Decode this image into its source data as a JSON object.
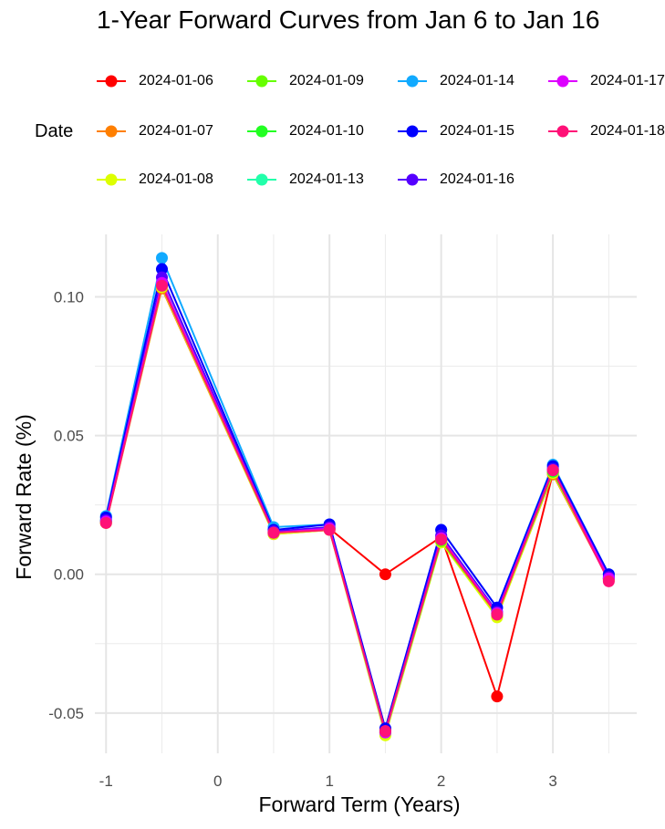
{
  "chart_data": {
    "type": "line",
    "title": "1-Year Forward Curves from Jan 6 to Jan 16",
    "xlabel": "Forward Term (Years)",
    "ylabel": "Forward Rate (%)",
    "legend_title": "Date",
    "legend_position": "top",
    "grid": true,
    "xlim": [
      -1.1,
      3.75
    ],
    "ylim": [
      -0.0645,
      0.1225
    ],
    "x_ticks": [
      -1,
      0,
      1,
      2,
      3
    ],
    "y_ticks": [
      -0.05,
      0.0,
      0.05,
      0.1
    ],
    "x_tick_labels": [
      "-1",
      "0",
      "1",
      "2",
      "3"
    ],
    "y_tick_labels": [
      "-0.05",
      "0.00",
      "0.05",
      "0.10"
    ],
    "x": [
      -1,
      -0.5,
      0.5,
      1,
      1.5,
      2,
      2.5,
      3,
      3.5
    ],
    "series": [
      {
        "name": "2024-01-06",
        "color": "#FF0000",
        "values": [
          0.019,
          0.104,
          0.015,
          0.0165,
          0.0,
          0.0135,
          -0.044,
          0.0365,
          -0.0015
        ]
      },
      {
        "name": "2024-01-07",
        "color": "#FF7F00",
        "values": [
          0.0185,
          0.103,
          0.0145,
          0.016,
          -0.057,
          0.012,
          -0.015,
          0.036,
          -0.002
        ]
      },
      {
        "name": "2024-01-08",
        "color": "#DDFF00",
        "values": [
          0.0185,
          0.1035,
          0.0145,
          0.016,
          -0.058,
          0.0115,
          -0.0155,
          0.0365,
          -0.002
        ]
      },
      {
        "name": "2024-01-09",
        "color": "#66FF00",
        "values": [
          0.019,
          0.104,
          0.015,
          0.0165,
          -0.057,
          0.012,
          -0.0145,
          0.037,
          -0.0015
        ]
      },
      {
        "name": "2024-01-10",
        "color": "#22FF22",
        "values": [
          0.019,
          0.1045,
          0.015,
          0.0165,
          -0.057,
          0.0125,
          -0.014,
          0.037,
          -0.0015
        ]
      },
      {
        "name": "2024-01-13",
        "color": "#22FFAA",
        "values": [
          0.0195,
          0.105,
          0.0155,
          0.017,
          -0.0565,
          0.013,
          -0.014,
          0.0375,
          -0.001
        ]
      },
      {
        "name": "2024-01-14",
        "color": "#11AAFF",
        "values": [
          0.021,
          0.114,
          0.017,
          0.018,
          -0.056,
          0.016,
          -0.012,
          0.0395,
          0.0
        ]
      },
      {
        "name": "2024-01-15",
        "color": "#0000FF",
        "values": [
          0.0205,
          0.11,
          0.016,
          0.018,
          -0.0555,
          0.016,
          -0.012,
          0.039,
          0.0
        ]
      },
      {
        "name": "2024-01-16",
        "color": "#5500FF",
        "values": [
          0.0195,
          0.107,
          0.0155,
          0.017,
          -0.0565,
          0.014,
          -0.0135,
          0.038,
          -0.001
        ]
      },
      {
        "name": "2024-01-17",
        "color": "#DD00FF",
        "values": [
          0.019,
          0.105,
          0.015,
          0.0165,
          -0.057,
          0.013,
          -0.014,
          0.0375,
          -0.0015
        ]
      },
      {
        "name": "2024-01-18",
        "color": "#FF1177",
        "values": [
          0.0185,
          0.104,
          0.015,
          0.016,
          -0.0565,
          0.0125,
          -0.0145,
          0.0375,
          -0.0025
        ]
      }
    ]
  }
}
